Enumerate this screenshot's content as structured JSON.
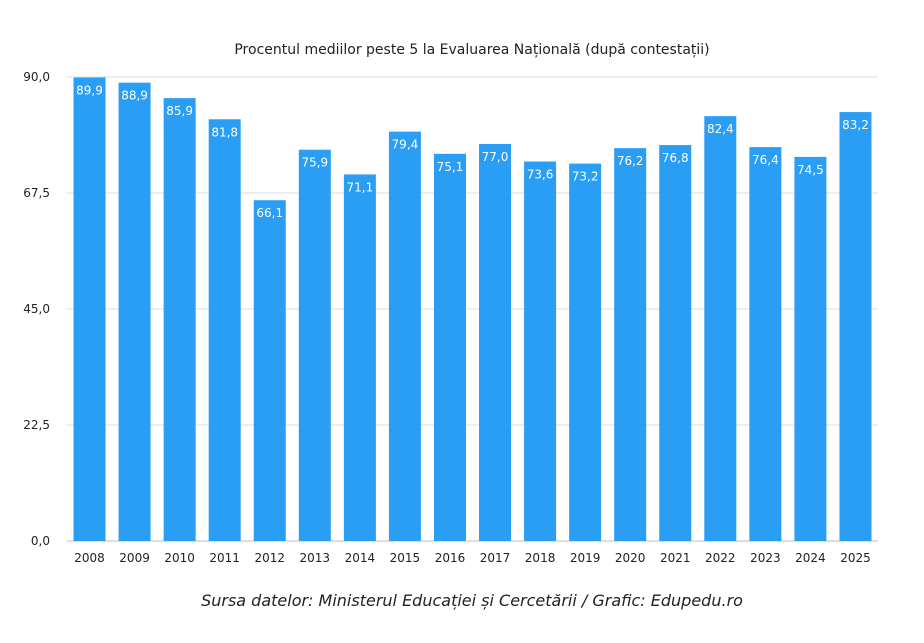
{
  "chart_data": {
    "type": "bar",
    "title": "Procentul mediilor peste 5 la Evaluarea Națională (după contestații)",
    "categories": [
      "2008",
      "2009",
      "2010",
      "2011",
      "2012",
      "2013",
      "2014",
      "2015",
      "2016",
      "2017",
      "2018",
      "2019",
      "2020",
      "2021",
      "2022",
      "2023",
      "2024",
      "2025"
    ],
    "values": [
      89.9,
      88.9,
      85.9,
      81.8,
      66.1,
      75.9,
      71.1,
      79.4,
      75.1,
      77.0,
      73.6,
      73.2,
      76.2,
      76.8,
      82.4,
      76.4,
      74.5,
      83.2
    ],
    "value_labels": [
      "89,9",
      "88,9",
      "85,9",
      "81,8",
      "66,1",
      "75,9",
      "71,1",
      "79,4",
      "75,1",
      "77,0",
      "73,6",
      "73,2",
      "76,2",
      "76,8",
      "82,4",
      "76,4",
      "74,5",
      "83,2"
    ],
    "ylim": [
      0,
      90
    ],
    "yticks": [
      0,
      22.5,
      45,
      67.5,
      90
    ],
    "ytick_labels": [
      "0,0",
      "22,5",
      "45,0",
      "67,5",
      "90,0"
    ],
    "grid": true,
    "bar_color": "#2a9df4",
    "xlabel": "",
    "ylabel": ""
  },
  "source_note": "Sursa datelor: Ministerul Educației și Cercetării / Grafic: Edupedu.ro"
}
